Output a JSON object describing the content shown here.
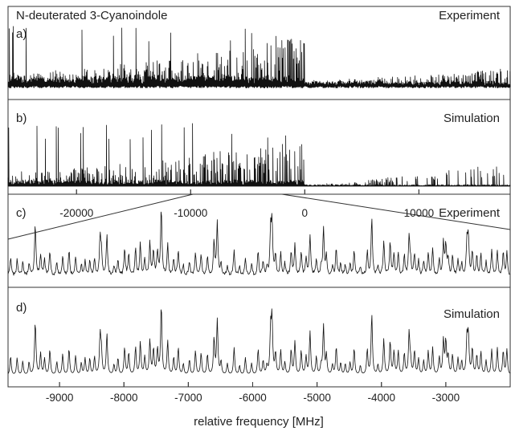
{
  "chart_data": [
    {
      "type": "line",
      "panel": "a)",
      "title": "N-deuterated 3-Cyanoindole",
      "label": "Experiment",
      "x_range": [
        -26000,
        18000
      ],
      "x_unit": "MHz",
      "note_values": "relative intensity, arbitrary units; dense line spectrum concentrated below 0 MHz"
    },
    {
      "type": "line",
      "panel": "b)",
      "label": "Simulation",
      "x_range": [
        -26000,
        18000
      ],
      "x_unit": "MHz",
      "ticks": [
        -20000,
        -10000,
        0,
        10000
      ],
      "tick_labels": [
        "-20000",
        "-10000",
        "0",
        "10000"
      ],
      "zoom_window": [
        -9800,
        -2000
      ]
    },
    {
      "type": "line",
      "panel": "c)",
      "label": "Experiment",
      "x_range": [
        -9800,
        -2000
      ],
      "x_unit": "MHz"
    },
    {
      "type": "line",
      "panel": "d)",
      "label": "Simulation",
      "x_range": [
        -9800,
        -2000
      ],
      "x_unit": "MHz",
      "ticks": [
        -9000,
        -8000,
        -7000,
        -6000,
        -5000,
        -4000,
        -3000
      ],
      "tick_labels": [
        "-9000",
        "-8000",
        "-7000",
        "-6000",
        "-5000",
        "-4000",
        "-3000"
      ],
      "xlabel": "relative frequency [MHz]"
    }
  ]
}
